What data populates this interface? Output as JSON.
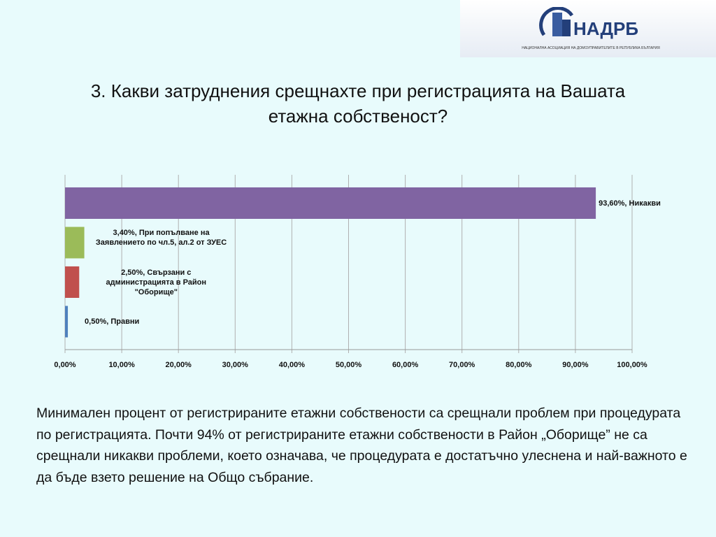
{
  "logo": {
    "name": "НАДРБ",
    "tagline": "НАЦИОНАЛНА АСОЦИАЦИЯ НА ДОМОУПРАВИТЕЛИТЕ В РЕПУБЛИКА БЪЛГАРИЯ"
  },
  "title": "3. Какви затруднения срещнахте при регистрацията на Вашата етажна собственост?",
  "chart_data": {
    "type": "hbar",
    "values": [
      93.6,
      3.4,
      2.5,
      0.5
    ],
    "value_labels": [
      "93,60%, Никакви",
      "3,40%, При попълване на Заявлението по чл.5, ал.2 от ЗУЕС",
      "2,50%, Свързани с администрацията в Район \"Оборище\"",
      "0,50%, Правни"
    ],
    "colors": [
      "#8064a2",
      "#9bbb59",
      "#c0504d",
      "#4f81bd"
    ],
    "xlim": [
      0,
      100
    ],
    "xticks": [
      {
        "value": 0,
        "label": "0,00%"
      },
      {
        "value": 10,
        "label": "10,00%"
      },
      {
        "value": 20,
        "label": "20,00%"
      },
      {
        "value": 30,
        "label": "30,00%"
      },
      {
        "value": 40,
        "label": "40,00%"
      },
      {
        "value": 50,
        "label": "50,00%"
      },
      {
        "value": 60,
        "label": "60,00%"
      },
      {
        "value": 70,
        "label": "70,00%"
      },
      {
        "value": 80,
        "label": "80,00%"
      },
      {
        "value": 90,
        "label": "90,00%"
      },
      {
        "value": 100,
        "label": "100,00%"
      }
    ],
    "grid": true
  },
  "body": "Минимален процент от регистрираните етажни собствености са срещнали проблем при процедурата по регистрацията. Почти 94% от регистрираните етажни собствености в Район „Оборище” не са срещнали никакви проблеми, което означава, че процедурата е достатъчно улеснена и най-важното е да бъде взето решение на Общо събрание."
}
